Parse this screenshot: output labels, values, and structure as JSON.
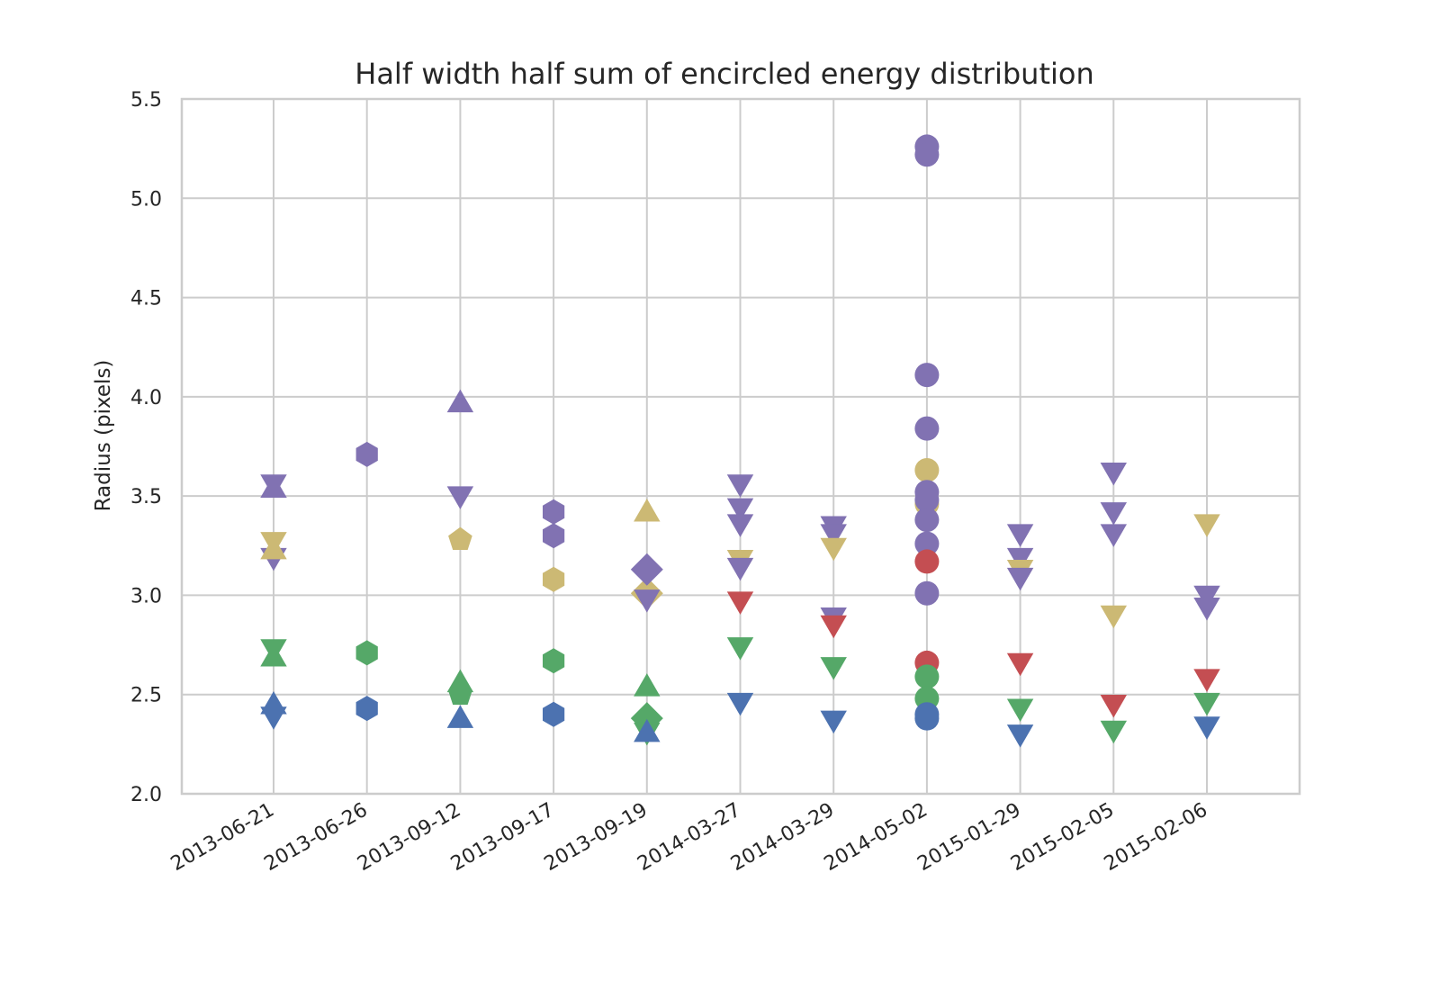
{
  "chart_data": {
    "type": "scatter",
    "title": "Half width half sum of encircled energy distribution",
    "xlabel": "",
    "ylabel": "Radius (pixels)",
    "categories": [
      "2013-06-21",
      "2013-06-26",
      "2013-09-12",
      "2013-09-17",
      "2013-09-19",
      "2014-03-27",
      "2014-03-29",
      "2014-05-02",
      "2015-01-29",
      "2015-02-05",
      "2015-02-06"
    ],
    "ylim": [
      2.0,
      5.5
    ],
    "yticks": [
      "2.0",
      "2.5",
      "3.0",
      "3.5",
      "4.0",
      "4.5",
      "5.0",
      "5.5"
    ],
    "grid": true,
    "colors": {
      "blue": "#4c72b0",
      "green": "#55a868",
      "red": "#c44e52",
      "purple": "#8172b2",
      "gold": "#ccb974"
    },
    "points": [
      {
        "x": "2013-06-21",
        "y": 3.57,
        "color": "purple",
        "marker": "triangle-down"
      },
      {
        "x": "2013-06-21",
        "y": 3.53,
        "color": "purple",
        "marker": "triangle-up"
      },
      {
        "x": "2013-06-21",
        "y": 3.2,
        "color": "purple",
        "marker": "triangle-down"
      },
      {
        "x": "2013-06-21",
        "y": 3.28,
        "color": "gold",
        "marker": "triangle-down"
      },
      {
        "x": "2013-06-21",
        "y": 3.22,
        "color": "gold",
        "marker": "triangle-up"
      },
      {
        "x": "2013-06-21",
        "y": 2.74,
        "color": "green",
        "marker": "triangle-down"
      },
      {
        "x": "2013-06-21",
        "y": 2.68,
        "color": "green",
        "marker": "triangle-up"
      },
      {
        "x": "2013-06-21",
        "y": 2.4,
        "color": "blue",
        "marker": "triangle-down"
      },
      {
        "x": "2013-06-21",
        "y": 2.44,
        "color": "blue",
        "marker": "triangle-up"
      },
      {
        "x": "2013-06-26",
        "y": 3.71,
        "color": "purple",
        "marker": "hexagon"
      },
      {
        "x": "2013-06-26",
        "y": 2.71,
        "color": "green",
        "marker": "hexagon"
      },
      {
        "x": "2013-06-26",
        "y": 2.43,
        "color": "blue",
        "marker": "hexagon"
      },
      {
        "x": "2013-09-12",
        "y": 3.96,
        "color": "purple",
        "marker": "triangle-up"
      },
      {
        "x": "2013-09-12",
        "y": 3.51,
        "color": "purple",
        "marker": "triangle-down"
      },
      {
        "x": "2013-09-12",
        "y": 3.28,
        "color": "gold",
        "marker": "pentagon"
      },
      {
        "x": "2013-09-12",
        "y": 2.55,
        "color": "green",
        "marker": "triangle-up"
      },
      {
        "x": "2013-09-12",
        "y": 2.5,
        "color": "green",
        "marker": "pentagon"
      },
      {
        "x": "2013-09-12",
        "y": 2.37,
        "color": "blue",
        "marker": "triangle-up"
      },
      {
        "x": "2013-09-17",
        "y": 3.42,
        "color": "purple",
        "marker": "hexagon"
      },
      {
        "x": "2013-09-17",
        "y": 3.3,
        "color": "purple",
        "marker": "hexagon"
      },
      {
        "x": "2013-09-17",
        "y": 3.08,
        "color": "gold",
        "marker": "hexagon"
      },
      {
        "x": "2013-09-17",
        "y": 2.67,
        "color": "green",
        "marker": "hexagon"
      },
      {
        "x": "2013-09-17",
        "y": 2.4,
        "color": "blue",
        "marker": "hexagon"
      },
      {
        "x": "2013-09-19",
        "y": 3.41,
        "color": "gold",
        "marker": "triangle-up"
      },
      {
        "x": "2013-09-19",
        "y": 3.01,
        "color": "gold",
        "marker": "diamond"
      },
      {
        "x": "2013-09-19",
        "y": 3.13,
        "color": "purple",
        "marker": "diamond"
      },
      {
        "x": "2013-09-19",
        "y": 2.99,
        "color": "purple",
        "marker": "triangle-down"
      },
      {
        "x": "2013-09-19",
        "y": 2.53,
        "color": "green",
        "marker": "triangle-up"
      },
      {
        "x": "2013-09-19",
        "y": 2.38,
        "color": "green",
        "marker": "diamond"
      },
      {
        "x": "2013-09-19",
        "y": 2.32,
        "color": "green",
        "marker": "triangle-down"
      },
      {
        "x": "2013-09-19",
        "y": 2.3,
        "color": "blue",
        "marker": "triangle-up"
      },
      {
        "x": "2014-03-27",
        "y": 3.57,
        "color": "purple",
        "marker": "triangle-down"
      },
      {
        "x": "2014-03-27",
        "y": 3.45,
        "color": "purple",
        "marker": "triangle-down"
      },
      {
        "x": "2014-03-27",
        "y": 3.37,
        "color": "purple",
        "marker": "triangle-down"
      },
      {
        "x": "2014-03-27",
        "y": 3.19,
        "color": "gold",
        "marker": "triangle-down"
      },
      {
        "x": "2014-03-27",
        "y": 3.15,
        "color": "purple",
        "marker": "triangle-down"
      },
      {
        "x": "2014-03-27",
        "y": 2.98,
        "color": "red",
        "marker": "triangle-down"
      },
      {
        "x": "2014-03-27",
        "y": 2.75,
        "color": "green",
        "marker": "triangle-down"
      },
      {
        "x": "2014-03-27",
        "y": 2.47,
        "color": "blue",
        "marker": "triangle-down"
      },
      {
        "x": "2014-03-29",
        "y": 3.36,
        "color": "purple",
        "marker": "triangle-down"
      },
      {
        "x": "2014-03-29",
        "y": 3.32,
        "color": "purple",
        "marker": "triangle-down"
      },
      {
        "x": "2014-03-29",
        "y": 3.25,
        "color": "gold",
        "marker": "triangle-down"
      },
      {
        "x": "2014-03-29",
        "y": 2.9,
        "color": "purple",
        "marker": "triangle-down"
      },
      {
        "x": "2014-03-29",
        "y": 2.86,
        "color": "red",
        "marker": "triangle-down"
      },
      {
        "x": "2014-03-29",
        "y": 2.65,
        "color": "green",
        "marker": "triangle-down"
      },
      {
        "x": "2014-03-29",
        "y": 2.38,
        "color": "blue",
        "marker": "triangle-down"
      },
      {
        "x": "2014-05-02",
        "y": 5.26,
        "color": "purple",
        "marker": "circle"
      },
      {
        "x": "2014-05-02",
        "y": 5.22,
        "color": "purple",
        "marker": "circle"
      },
      {
        "x": "2014-05-02",
        "y": 4.11,
        "color": "purple",
        "marker": "circle"
      },
      {
        "x": "2014-05-02",
        "y": 3.84,
        "color": "purple",
        "marker": "circle"
      },
      {
        "x": "2014-05-02",
        "y": 3.63,
        "color": "gold",
        "marker": "circle"
      },
      {
        "x": "2014-05-02",
        "y": 3.46,
        "color": "gold",
        "marker": "circle"
      },
      {
        "x": "2014-05-02",
        "y": 3.52,
        "color": "purple",
        "marker": "circle"
      },
      {
        "x": "2014-05-02",
        "y": 3.48,
        "color": "purple",
        "marker": "circle"
      },
      {
        "x": "2014-05-02",
        "y": 3.38,
        "color": "purple",
        "marker": "circle"
      },
      {
        "x": "2014-05-02",
        "y": 3.26,
        "color": "purple",
        "marker": "circle"
      },
      {
        "x": "2014-05-02",
        "y": 3.17,
        "color": "red",
        "marker": "circle"
      },
      {
        "x": "2014-05-02",
        "y": 3.01,
        "color": "purple",
        "marker": "circle"
      },
      {
        "x": "2014-05-02",
        "y": 2.66,
        "color": "red",
        "marker": "circle"
      },
      {
        "x": "2014-05-02",
        "y": 2.59,
        "color": "green",
        "marker": "circle"
      },
      {
        "x": "2014-05-02",
        "y": 2.48,
        "color": "green",
        "marker": "circle"
      },
      {
        "x": "2014-05-02",
        "y": 2.4,
        "color": "blue",
        "marker": "circle"
      },
      {
        "x": "2014-05-02",
        "y": 2.38,
        "color": "blue",
        "marker": "circle"
      },
      {
        "x": "2015-01-29",
        "y": 3.32,
        "color": "purple",
        "marker": "triangle-down"
      },
      {
        "x": "2015-01-29",
        "y": 3.2,
        "color": "purple",
        "marker": "triangle-down"
      },
      {
        "x": "2015-01-29",
        "y": 3.14,
        "color": "gold",
        "marker": "triangle-down"
      },
      {
        "x": "2015-01-29",
        "y": 3.1,
        "color": "purple",
        "marker": "triangle-down"
      },
      {
        "x": "2015-01-29",
        "y": 2.67,
        "color": "red",
        "marker": "triangle-down"
      },
      {
        "x": "2015-01-29",
        "y": 2.44,
        "color": "green",
        "marker": "triangle-down"
      },
      {
        "x": "2015-01-29",
        "y": 2.31,
        "color": "blue",
        "marker": "triangle-down"
      },
      {
        "x": "2015-02-05",
        "y": 3.63,
        "color": "purple",
        "marker": "triangle-down"
      },
      {
        "x": "2015-02-05",
        "y": 3.43,
        "color": "purple",
        "marker": "triangle-down"
      },
      {
        "x": "2015-02-05",
        "y": 3.32,
        "color": "purple",
        "marker": "triangle-down"
      },
      {
        "x": "2015-02-05",
        "y": 2.91,
        "color": "gold",
        "marker": "triangle-down"
      },
      {
        "x": "2015-02-05",
        "y": 2.46,
        "color": "red",
        "marker": "triangle-down"
      },
      {
        "x": "2015-02-05",
        "y": 2.33,
        "color": "green",
        "marker": "triangle-down"
      },
      {
        "x": "2015-02-06",
        "y": 3.37,
        "color": "gold",
        "marker": "triangle-down"
      },
      {
        "x": "2015-02-06",
        "y": 3.01,
        "color": "purple",
        "marker": "triangle-down"
      },
      {
        "x": "2015-02-06",
        "y": 2.95,
        "color": "purple",
        "marker": "triangle-down"
      },
      {
        "x": "2015-02-06",
        "y": 2.59,
        "color": "red",
        "marker": "triangle-down"
      },
      {
        "x": "2015-02-06",
        "y": 2.47,
        "color": "green",
        "marker": "triangle-down"
      },
      {
        "x": "2015-02-06",
        "y": 2.35,
        "color": "blue",
        "marker": "triangle-down"
      }
    ]
  }
}
